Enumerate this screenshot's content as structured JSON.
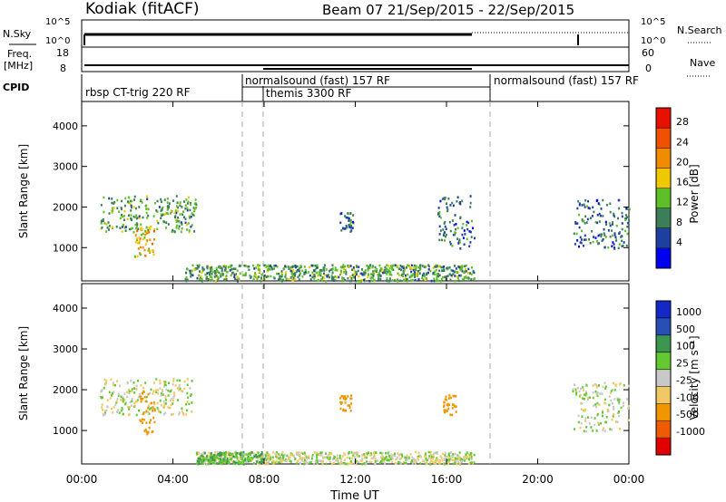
{
  "header": {
    "station": "Kodiak (fitACF)",
    "beam_date": "Beam 07  21/Sep/2015 - 22/Sep/2015"
  },
  "summary": {
    "nsky_label": "N.Sky",
    "nsky_ticks": [
      "10^5",
      "10^0"
    ],
    "nsearch_label": "N.Search",
    "nsearch_ticks": [
      "10^5",
      "10^0"
    ],
    "freq_label_1": "Freq.",
    "freq_label_2": "[MHz]",
    "freq_ticks": [
      "18",
      "8"
    ],
    "nave_label": "Nave",
    "nave_ticks": [
      "60",
      "0"
    ],
    "cpid_label": "CPID",
    "cpid_segments": [
      {
        "label": "rbsp CT-trig 220 RF"
      },
      {
        "label": "normalsound (fast) 157 RF"
      },
      {
        "label": "themis 3300 RF"
      },
      {
        "label": "normalsound (fast) 157 RF"
      }
    ]
  },
  "colors": {
    "power_scale": [
      "#0000f0",
      "#1e3fa0",
      "#3a7f5a",
      "#5fbf28",
      "#f0c800",
      "#f08c00",
      "#f05000",
      "#e81000"
    ],
    "velocity_scale": [
      "#e00000",
      "#f05a00",
      "#f09600",
      "#f0c864",
      "#c8c8c8",
      "#64c832",
      "#3c9650",
      "#2850b4",
      "#1428c8"
    ],
    "dashed_line": "#aaaaaa"
  },
  "colorbars": {
    "power": {
      "label": "Power [dB]",
      "ticks": [
        "28",
        "24",
        "20",
        "16",
        "12",
        "8",
        "4"
      ]
    },
    "velocity": {
      "label": "Velocity [m s⁻¹]",
      "ticks": [
        "1000",
        "500",
        "100",
        "25",
        "-25",
        "-100",
        "-500",
        "-1000"
      ]
    }
  },
  "chart_data": [
    {
      "type": "heatmap",
      "name": "power",
      "ylabel": "Slant Range [km]",
      "yticks": [
        "4000",
        "3000",
        "2000",
        "1000"
      ],
      "ylim": [
        180,
        4600
      ],
      "xlim_hours": [
        0,
        24
      ],
      "colorbar": "Power [dB]",
      "features": [
        {
          "start": 0.8,
          "end": 5.0,
          "r_lo": 1400,
          "r_hi": 2300,
          "level": 12
        },
        {
          "start": 2.3,
          "end": 3.2,
          "r_lo": 800,
          "r_hi": 1600,
          "level": 20
        },
        {
          "start": 4.5,
          "end": 17.2,
          "r_lo": 200,
          "r_hi": 600,
          "level": 12
        },
        {
          "start": 11.3,
          "end": 11.9,
          "r_lo": 1400,
          "r_hi": 1900,
          "level": 8
        },
        {
          "start": 15.6,
          "end": 17.2,
          "r_lo": 1000,
          "r_hi": 2300,
          "level": 8
        },
        {
          "start": 21.5,
          "end": 24.0,
          "r_lo": 1000,
          "r_hi": 2200,
          "level": 8
        }
      ]
    },
    {
      "type": "heatmap",
      "name": "velocity",
      "ylabel": "Slant Range [km]",
      "yticks": [
        "4000",
        "3000",
        "2000",
        "1000"
      ],
      "ylim": [
        180,
        4600
      ],
      "xlim_hours": [
        0,
        24
      ],
      "colorbar": "Velocity [m s⁻¹]",
      "xlabel": "Time UT",
      "xticks": [
        "00:00",
        "04:00",
        "08:00",
        "12:00",
        "16:00",
        "20:00",
        "00:00"
      ],
      "features": [
        {
          "start": 0.8,
          "end": 4.8,
          "r_lo": 1400,
          "r_hi": 2300,
          "velocity": 0
        },
        {
          "start": 2.5,
          "end": 3.2,
          "r_lo": 900,
          "r_hi": 2000,
          "velocity": -200
        },
        {
          "start": 5.0,
          "end": 17.2,
          "r_lo": 200,
          "r_hi": 500,
          "velocity": 0
        },
        {
          "start": 5.0,
          "end": 8.0,
          "r_lo": 200,
          "r_hi": 500,
          "velocity": 100
        },
        {
          "start": 11.3,
          "end": 11.8,
          "r_lo": 1500,
          "r_hi": 1900,
          "velocity": -300
        },
        {
          "start": 15.8,
          "end": 16.4,
          "r_lo": 1400,
          "r_hi": 1900,
          "velocity": -400
        },
        {
          "start": 21.5,
          "end": 24.0,
          "r_lo": 1000,
          "r_hi": 2200,
          "velocity": 0
        }
      ]
    }
  ]
}
